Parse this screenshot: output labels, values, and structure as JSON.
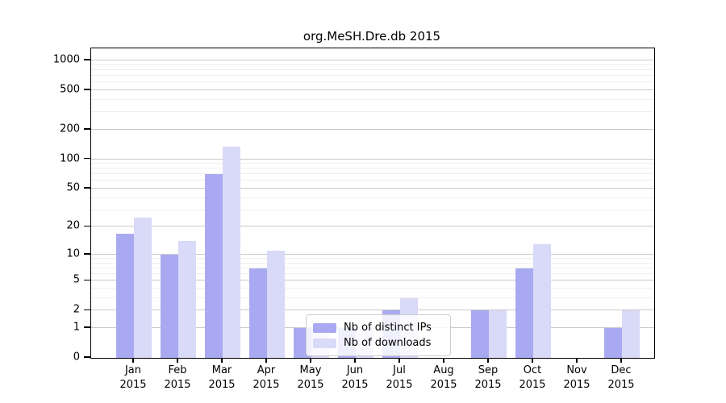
{
  "title": "org.MeSH.Dre.db 2015",
  "chart_data": {
    "type": "bar",
    "title": "org.MeSH.Dre.db 2015",
    "xlabel": "",
    "ylabel": "",
    "scale": "log10(1+x)",
    "grid": true,
    "legend_position": "inside-bottom-center",
    "categories": [
      "Jan",
      "Feb",
      "Mar",
      "Apr",
      "May",
      "Jun",
      "Jul",
      "Aug",
      "Sep",
      "Oct",
      "Nov",
      "Dec"
    ],
    "year_label": "2015",
    "y_ticks": [
      0,
      1,
      2,
      5,
      10,
      20,
      50,
      100,
      200,
      500,
      1000
    ],
    "y_minor": [
      3,
      4,
      6,
      7,
      8,
      9,
      30,
      40,
      60,
      70,
      80,
      90,
      300,
      400,
      600,
      700,
      800,
      900
    ],
    "ylim": [
      0,
      1250
    ],
    "series": [
      {
        "name": "Nb of distinct IPs",
        "color": "#a9a9f2",
        "values": [
          17,
          10,
          70,
          7,
          1,
          1,
          2,
          0,
          2,
          7,
          0,
          1
        ]
      },
      {
        "name": "Nb of downloads",
        "color": "#d9d9f8",
        "values": [
          25,
          14,
          134,
          11,
          1,
          1,
          3,
          0,
          2,
          13,
          0,
          2
        ]
      }
    ]
  },
  "colors": {
    "ips_bar": "#a9a9f2",
    "downloads_bar": "#d9d9f8",
    "grid_major": "#c9c9c9",
    "grid_minor": "#efefef",
    "spine": "#000000"
  }
}
